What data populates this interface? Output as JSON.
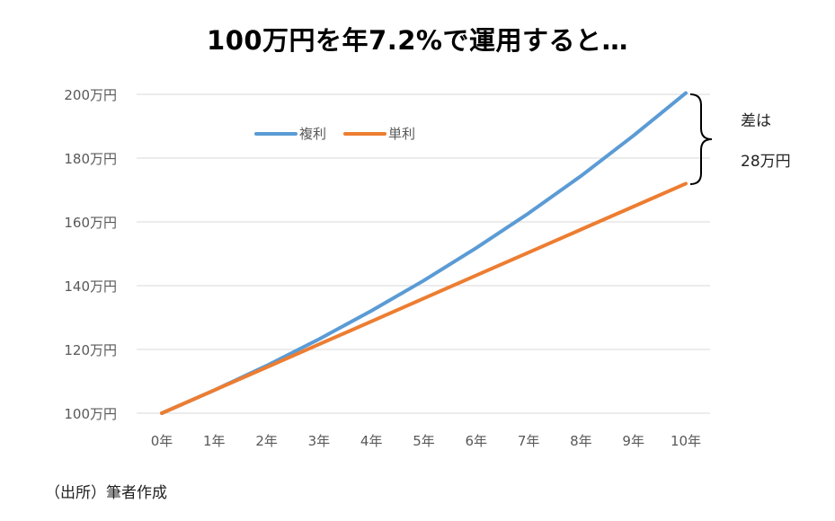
{
  "chart_data": {
    "type": "line",
    "title": "100万円を年7.2%で運用すると…",
    "categories": [
      "0年",
      "1年",
      "2年",
      "3年",
      "4年",
      "5年",
      "6年",
      "7年",
      "8年",
      "9年",
      "10年"
    ],
    "series": [
      {
        "name": "複利",
        "color": "#5B9BD5",
        "values": [
          100,
          107.2,
          114.9,
          123.2,
          132.1,
          141.6,
          151.8,
          162.7,
          174.4,
          187.0,
          200.4
        ]
      },
      {
        "name": "単利",
        "color": "#ED7D31",
        "values": [
          100,
          107.2,
          114.4,
          121.6,
          128.8,
          136.0,
          143.2,
          150.4,
          157.6,
          164.8,
          172.0
        ]
      }
    ],
    "ylim": [
      100,
      200
    ],
    "yticks": [
      100,
      120,
      140,
      160,
      180,
      200
    ],
    "ytick_labels": [
      "100万円",
      "120万円",
      "140万円",
      "160万円",
      "180万円",
      "200万円"
    ],
    "grid": true,
    "legend_position": "top-left inside plot",
    "annotation": {
      "line1": "差は",
      "line2": "28万円"
    }
  },
  "source_note": "（出所）筆者作成"
}
